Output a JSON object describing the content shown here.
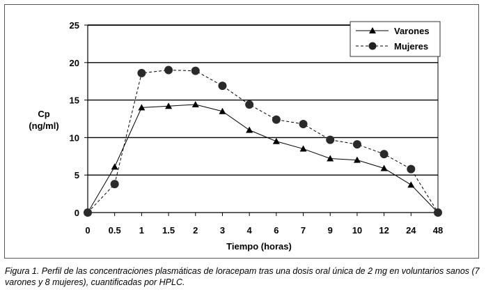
{
  "chart_data": {
    "type": "line",
    "categories": [
      "0",
      "0.5",
      "1",
      "1.5",
      "2",
      "3",
      "4",
      "6",
      "7",
      "9",
      "10",
      "12",
      "24",
      "48"
    ],
    "series": [
      {
        "name": "Varones",
        "marker": "triangle",
        "line": "solid",
        "values": [
          0,
          6.1,
          14.0,
          14.2,
          14.4,
          13.5,
          11.0,
          9.5,
          8.5,
          7.2,
          7.0,
          5.9,
          3.7,
          0
        ]
      },
      {
        "name": "Mujeres",
        "marker": "circle",
        "line": "dashed",
        "values": [
          0,
          3.8,
          18.6,
          19.0,
          18.9,
          16.9,
          14.4,
          12.4,
          11.8,
          9.7,
          9.1,
          7.8,
          5.8,
          0
        ]
      }
    ],
    "ylabel_lines": [
      "Cp",
      "(ng/ml)"
    ],
    "xlabel": "Tiempo (horas)",
    "yticks": [
      0,
      5,
      10,
      15,
      20,
      25
    ],
    "ylim": [
      0,
      25
    ],
    "grid": true,
    "legend_position": "top-right"
  },
  "caption": "Figura 1. Perfil de las concentraciones plasmáticas de loracepam tras una dosis oral única de 2 mg en voluntarios sanos (7 varones y 8 mujeres), cuantificadas por HPLC."
}
